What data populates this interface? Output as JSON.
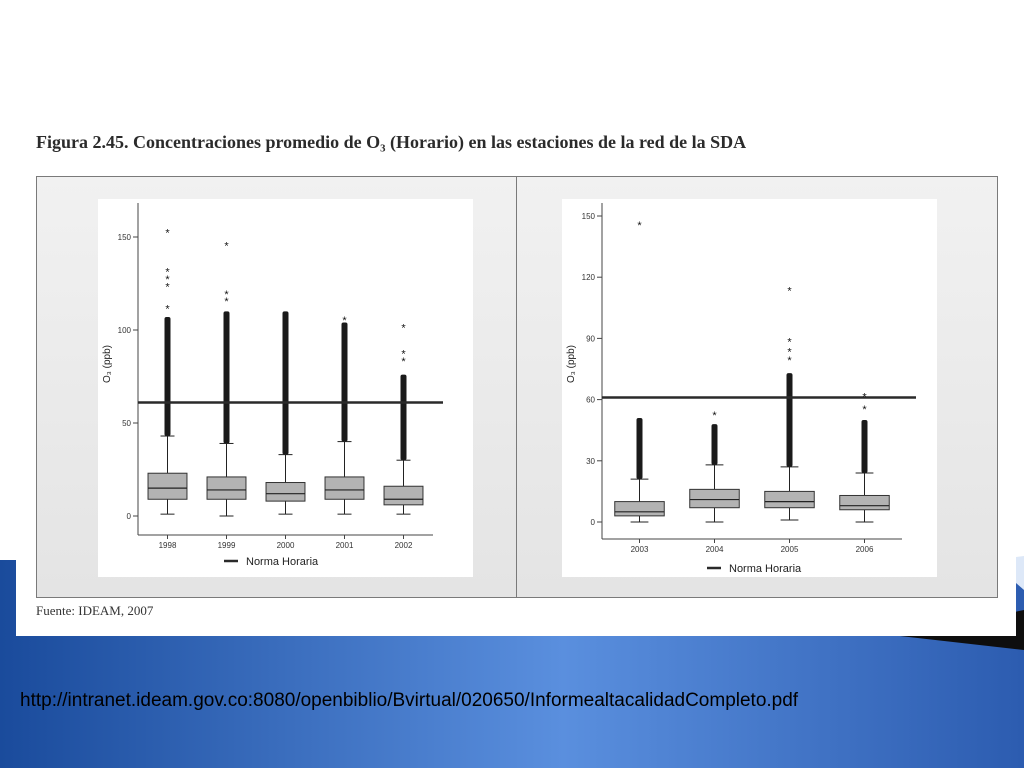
{
  "slide": {
    "link_url": "http://intranet.ideam.gov.co:8080/openbiblio/Bvirtual/020650/InformealtacalidadCompleto.pdf"
  },
  "figure": {
    "title": "Figura 2.45. Concentraciones promedio de O₃ (Horario) en las estaciones de la red de la SDA",
    "source": "Fuente: IDEAM, 2007"
  },
  "colors": {
    "box_fill": "#b3b3b3",
    "norm_line": "#2a2a2a",
    "slide_blue_dark": "#1c4fa0",
    "slide_blue_light": "#5f93e0"
  },
  "chart_data": [
    {
      "type": "box",
      "ylabel": "O₃ (ppb)",
      "ylim": [
        0,
        150
      ],
      "yticks": [
        "0",
        "50",
        "100",
        "150"
      ],
      "categories": [
        "1998",
        "1999",
        "2000",
        "2001",
        "2002"
      ],
      "reference_line": {
        "value": 61,
        "label": "Norma Horaria"
      },
      "boxes": [
        {
          "whisker_low": 1,
          "q1": 9,
          "median": 15,
          "q3": 23,
          "whisker_high": 43,
          "outlier_top": 107,
          "extremes": [
            112,
            124,
            128,
            132,
            153
          ]
        },
        {
          "whisker_low": 0,
          "q1": 9,
          "median": 14,
          "q3": 21,
          "whisker_high": 39,
          "outlier_top": 110,
          "extremes": [
            116,
            120,
            146
          ]
        },
        {
          "whisker_low": 1,
          "q1": 8,
          "median": 12,
          "q3": 18,
          "whisker_high": 33,
          "outlier_top": 110
        },
        {
          "whisker_low": 1,
          "q1": 9,
          "median": 14,
          "q3": 21,
          "whisker_high": 40,
          "outlier_top": 104,
          "extremes": [
            106
          ]
        },
        {
          "whisker_low": 1,
          "q1": 6,
          "median": 9,
          "q3": 16,
          "whisker_high": 30,
          "outlier_top": 76,
          "extremes": [
            84,
            88,
            102
          ]
        }
      ]
    },
    {
      "type": "box",
      "ylabel": "O₃ (ppb)",
      "ylim": [
        0,
        150
      ],
      "yticks": [
        "0",
        "30",
        "60",
        "90",
        "120",
        "150"
      ],
      "categories": [
        "2003",
        "2004",
        "2005",
        "2006"
      ],
      "reference_line": {
        "value": 61,
        "label": "Norma Horaria"
      },
      "boxes": [
        {
          "whisker_low": 0,
          "q1": 3,
          "median": 5,
          "q3": 10,
          "whisker_high": 21,
          "outlier_top": 51,
          "extremes": [
            146
          ]
        },
        {
          "whisker_low": 0,
          "q1": 7,
          "median": 11,
          "q3": 16,
          "whisker_high": 28,
          "outlier_top": 48,
          "extremes": [
            53
          ]
        },
        {
          "whisker_low": 1,
          "q1": 7,
          "median": 10,
          "q3": 15,
          "whisker_high": 27,
          "outlier_top": 73,
          "extremes": [
            80,
            84,
            89,
            114
          ]
        },
        {
          "whisker_low": 0,
          "q1": 6,
          "median": 8,
          "q3": 13,
          "whisker_high": 24,
          "outlier_top": 50,
          "extremes": [
            56,
            62
          ]
        }
      ]
    }
  ]
}
